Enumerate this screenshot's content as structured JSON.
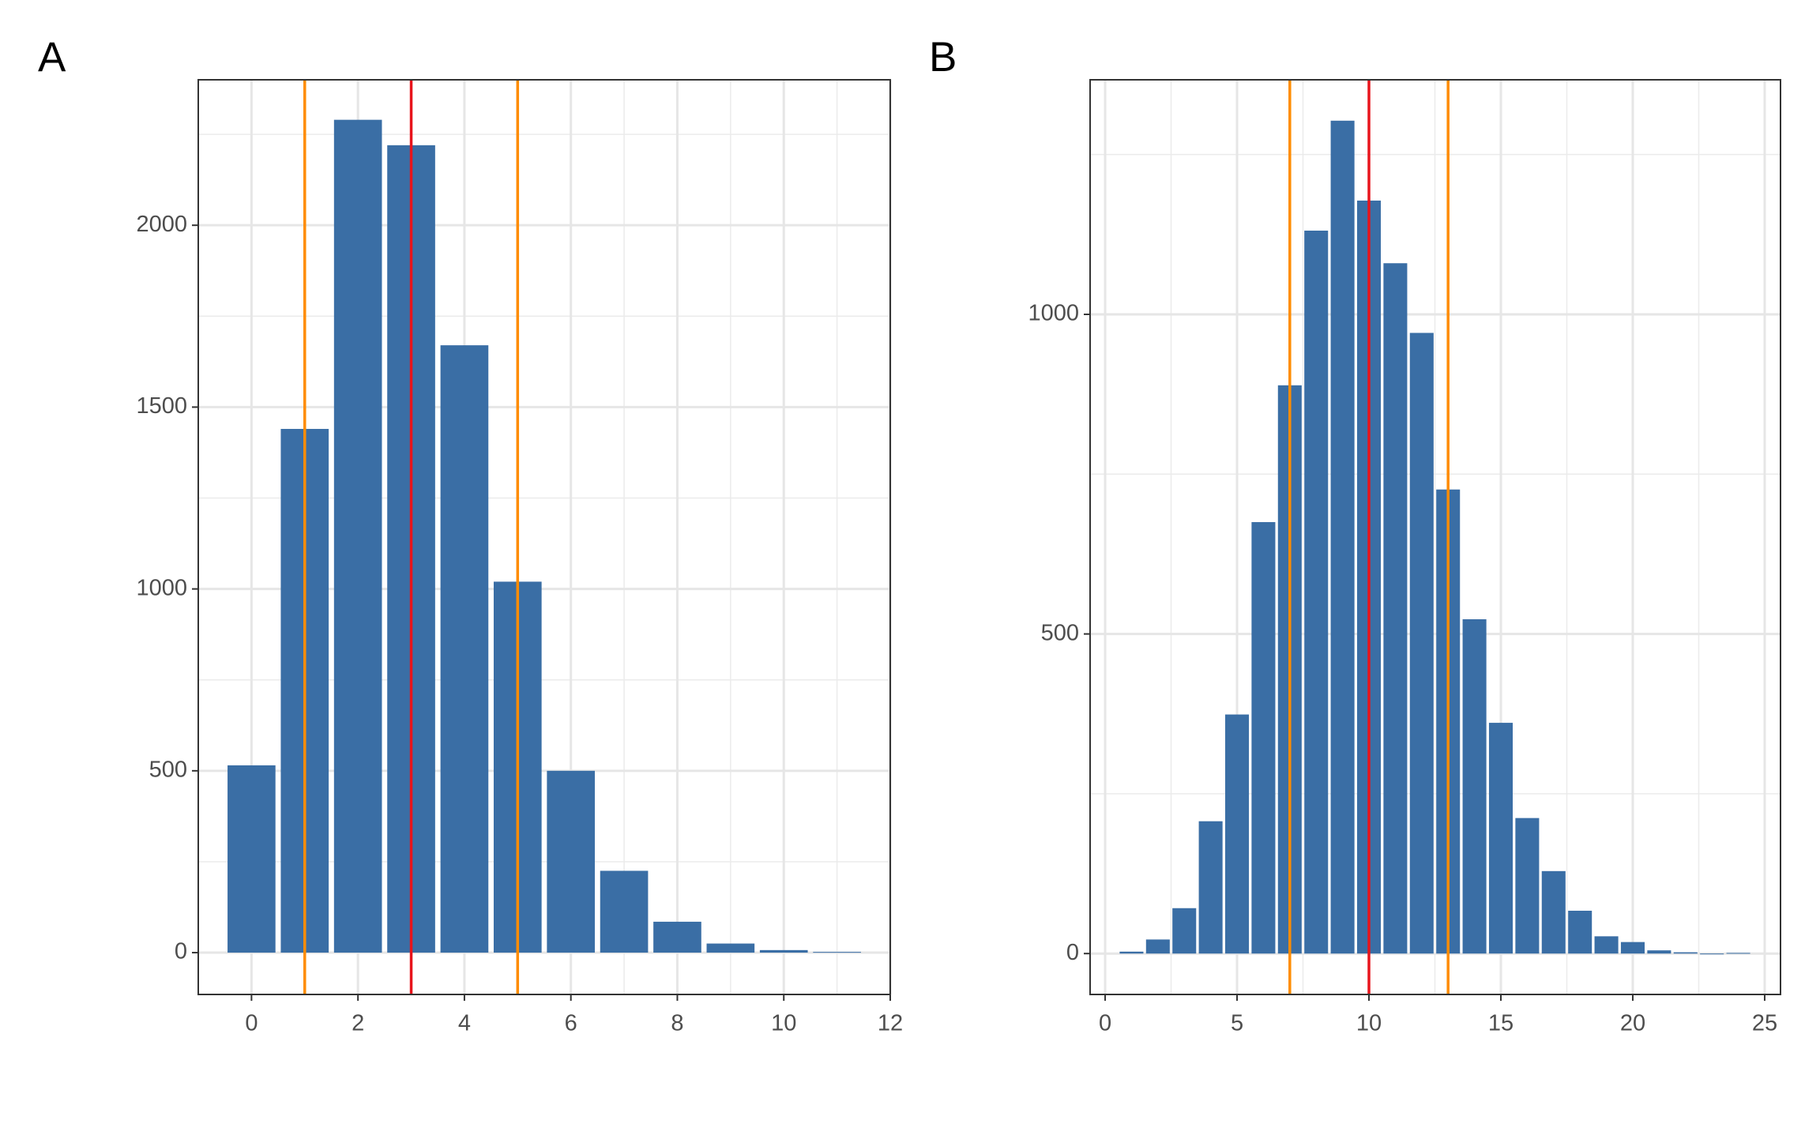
{
  "chart_data": [
    {
      "type": "bar",
      "label": "A",
      "x": [
        0,
        1,
        2,
        3,
        4,
        5,
        6,
        7,
        8,
        9,
        10,
        11
      ],
      "values": [
        515,
        1440,
        2290,
        2220,
        1670,
        1020,
        500,
        225,
        85,
        25,
        7,
        2
      ],
      "color": "#3a6ea5",
      "xlim": [
        -1,
        12
      ],
      "xticks": [
        0,
        2,
        4,
        6,
        8,
        10,
        12
      ],
      "ylim": [
        -115,
        2400
      ],
      "yticks": [
        0,
        500,
        1000,
        1500,
        2000
      ],
      "grid": true,
      "vlines": [
        {
          "x": 1,
          "color": "#ff8c00"
        },
        {
          "x": 3,
          "color": "#e8141c"
        },
        {
          "x": 5,
          "color": "#ff8c00"
        }
      ]
    },
    {
      "type": "bar",
      "label": "B",
      "x": [
        1,
        2,
        3,
        4,
        5,
        6,
        7,
        8,
        9,
        10,
        11,
        12,
        13,
        14,
        15,
        16,
        17,
        18,
        19,
        20,
        21,
        22,
        23,
        24
      ],
      "values": [
        3,
        22,
        71,
        207,
        374,
        675,
        889,
        1131,
        1303,
        1178,
        1080,
        971,
        726,
        523,
        361,
        212,
        129,
        67,
        27,
        18,
        5,
        2,
        0,
        1
      ],
      "color": "#3a6ea5",
      "xlim": [
        -0.57,
        25.6
      ],
      "xticks": [
        0,
        5,
        10,
        15,
        20,
        25
      ],
      "ylim": [
        -64,
        1367
      ],
      "yticks": [
        0,
        500,
        1000
      ],
      "grid": true,
      "vlines": [
        {
          "x": 7,
          "color": "#ff8c00"
        },
        {
          "x": 10,
          "color": "#e8141c"
        },
        {
          "x": 13,
          "color": "#ff8c00"
        }
      ]
    }
  ]
}
